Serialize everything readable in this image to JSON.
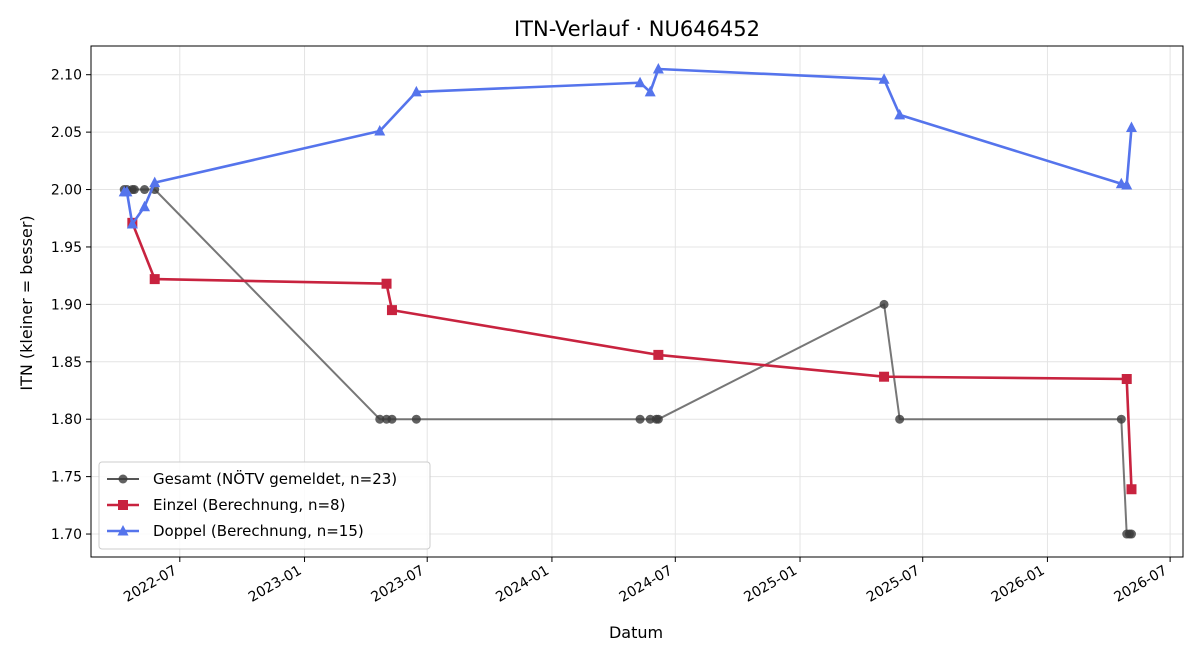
{
  "chart_data": {
    "type": "line",
    "title": "ITN-Verlauf · NU646452",
    "xlabel": "Datum",
    "ylabel": "ITN  (kleiner = besser)",
    "xlim": [
      "2022-02-20",
      "2026-07-20"
    ],
    "ylim": [
      1.68,
      2.125
    ],
    "y_ticks": [
      1.7,
      1.75,
      1.8,
      1.85,
      1.9,
      1.95,
      2.0,
      2.05,
      2.1
    ],
    "y_tick_labels": [
      "1.70",
      "1.75",
      "1.80",
      "1.85",
      "1.90",
      "1.95",
      "2.00",
      "2.05",
      "2.10"
    ],
    "x_ticks": [
      "2022-07-01",
      "2023-01-01",
      "2023-07-01",
      "2024-01-01",
      "2024-07-01",
      "2025-01-01",
      "2025-07-01",
      "2026-01-01",
      "2026-07-01"
    ],
    "x_tick_labels": [
      "2022-07",
      "2023-01",
      "2023-07",
      "2024-01",
      "2024-07",
      "2025-01",
      "2025-07",
      "2026-01",
      "2026-07"
    ],
    "grid": true,
    "legend_position": "lower-left",
    "series": [
      {
        "name": "Gesamt (NÖTV gemeldet, n=23)",
        "color": "#555555",
        "marker": "circle",
        "points": [
          {
            "x": "2022-04-10",
            "y": 2.0
          },
          {
            "x": "2022-04-14",
            "y": 2.0
          },
          {
            "x": "2022-04-22",
            "y": 2.0
          },
          {
            "x": "2022-04-25",
            "y": 2.0
          },
          {
            "x": "2022-05-10",
            "y": 2.0
          },
          {
            "x": "2022-05-25",
            "y": 2.0
          },
          {
            "x": "2023-04-22",
            "y": 1.8
          },
          {
            "x": "2023-05-02",
            "y": 1.8
          },
          {
            "x": "2023-05-10",
            "y": 1.8
          },
          {
            "x": "2023-06-15",
            "y": 1.8
          },
          {
            "x": "2024-05-10",
            "y": 1.8
          },
          {
            "x": "2024-05-25",
            "y": 1.8
          },
          {
            "x": "2024-06-03",
            "y": 1.8
          },
          {
            "x": "2024-06-06",
            "y": 1.8
          },
          {
            "x": "2025-05-05",
            "y": 1.9
          },
          {
            "x": "2025-05-28",
            "y": 1.8
          },
          {
            "x": "2026-04-20",
            "y": 1.8
          },
          {
            "x": "2026-04-28",
            "y": 1.7
          },
          {
            "x": "2026-05-02",
            "y": 1.7
          },
          {
            "x": "2026-05-05",
            "y": 1.7
          }
        ]
      },
      {
        "name": "Einzel (Berechnung, n=8)",
        "color": "#c8233f",
        "marker": "square",
        "points": [
          {
            "x": "2022-04-22",
            "y": 1.971
          },
          {
            "x": "2022-05-25",
            "y": 1.922
          },
          {
            "x": "2023-05-02",
            "y": 1.918
          },
          {
            "x": "2023-05-10",
            "y": 1.895
          },
          {
            "x": "2024-06-06",
            "y": 1.856
          },
          {
            "x": "2025-05-05",
            "y": 1.837
          },
          {
            "x": "2026-04-28",
            "y": 1.835
          },
          {
            "x": "2026-05-05",
            "y": 1.739
          }
        ]
      },
      {
        "name": "Doppel (Berechnung, n=15)",
        "color": "#5574ec",
        "marker": "triangle",
        "points": [
          {
            "x": "2022-04-10",
            "y": 1.998
          },
          {
            "x": "2022-04-14",
            "y": 1.998
          },
          {
            "x": "2022-04-22",
            "y": 1.97
          },
          {
            "x": "2022-05-10",
            "y": 1.985
          },
          {
            "x": "2022-05-25",
            "y": 2.006
          },
          {
            "x": "2023-04-22",
            "y": 2.051
          },
          {
            "x": "2023-06-15",
            "y": 2.085
          },
          {
            "x": "2024-05-10",
            "y": 2.093
          },
          {
            "x": "2024-05-25",
            "y": 2.085
          },
          {
            "x": "2024-06-06",
            "y": 2.105
          },
          {
            "x": "2025-05-05",
            "y": 2.096
          },
          {
            "x": "2025-05-28",
            "y": 2.065
          },
          {
            "x": "2026-04-20",
            "y": 2.005
          },
          {
            "x": "2026-04-28",
            "y": 2.004
          },
          {
            "x": "2026-05-05",
            "y": 2.054
          }
        ]
      }
    ]
  }
}
